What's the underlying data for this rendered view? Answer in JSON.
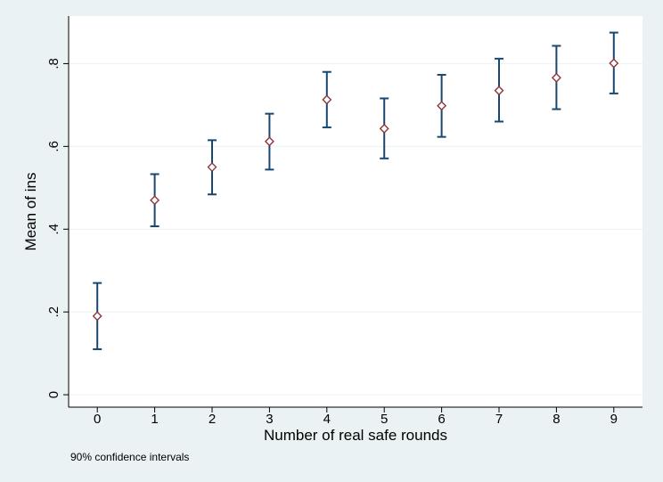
{
  "chart_data": {
    "type": "scatter",
    "title": "",
    "xlabel": "Number of real safe rounds",
    "ylabel": "Mean of ins",
    "note": "90% confidence intervals",
    "x_ticks": [
      "0",
      "1",
      "2",
      "3",
      "4",
      "5",
      "6",
      "7",
      "8",
      "9"
    ],
    "y_ticks": [
      {
        "value": 0,
        "label": "0"
      },
      {
        "value": 0.2,
        "label": ".2"
      },
      {
        "value": 0.4,
        "label": ".4"
      },
      {
        "value": 0.6,
        "label": ".6"
      },
      {
        "value": 0.8,
        "label": ".8"
      }
    ],
    "xlim": [
      -0.5,
      9.5
    ],
    "ylim": [
      -0.03,
      0.915
    ],
    "grid": "horizontal",
    "series": [
      {
        "marker": "hollow-diamond",
        "x": [
          0,
          1,
          2,
          3,
          4,
          5,
          6,
          7,
          8,
          9
        ],
        "y": [
          0.19,
          0.47,
          0.55,
          0.612,
          0.713,
          0.643,
          0.698,
          0.735,
          0.766,
          0.801
        ],
        "ci_low": [
          0.11,
          0.407,
          0.484,
          0.544,
          0.646,
          0.571,
          0.623,
          0.66,
          0.69,
          0.728
        ],
        "ci_high": [
          0.27,
          0.533,
          0.615,
          0.679,
          0.78,
          0.716,
          0.773,
          0.812,
          0.843,
          0.875
        ]
      }
    ],
    "colors": {
      "background": "#eaf2f3",
      "plot_background": "#ffffff",
      "grid": "#eaf2f3",
      "error_bar": "#1a476f",
      "marker": "#90353b"
    }
  }
}
